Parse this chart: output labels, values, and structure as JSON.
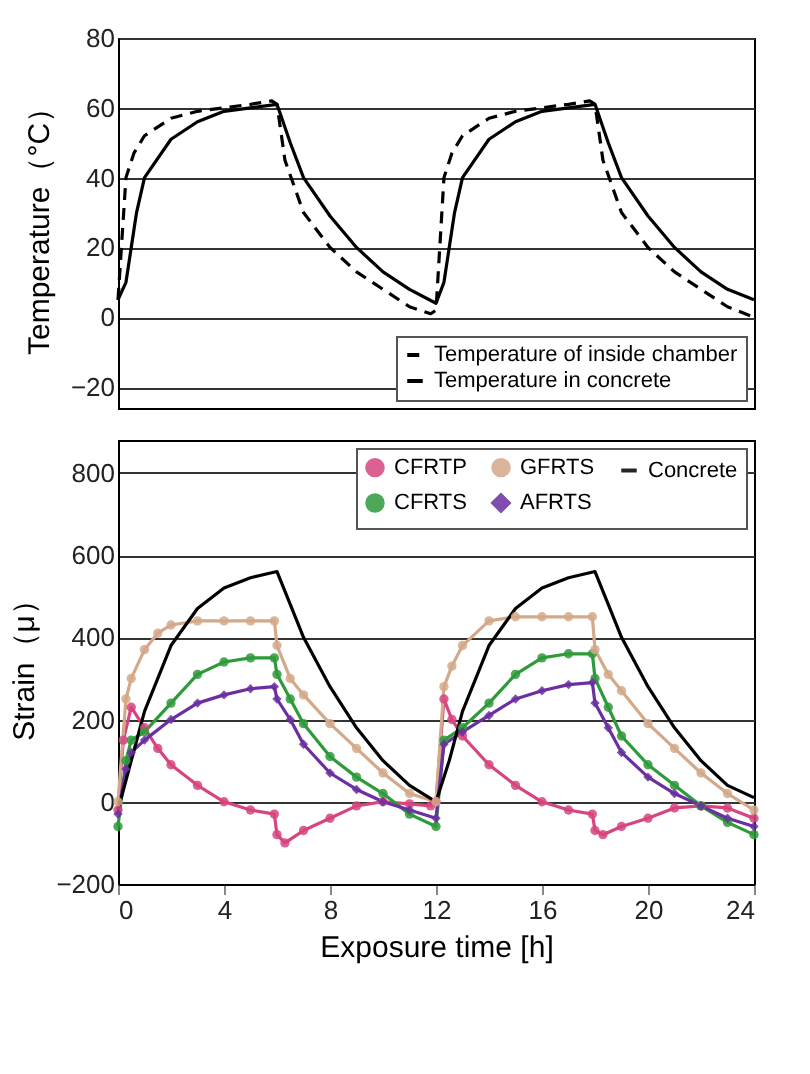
{
  "chart_data": [
    {
      "type": "line",
      "ylabel": "Temperature（°C）",
      "xlim": [
        0,
        24
      ],
      "xticks": [
        0,
        4,
        8,
        12,
        16,
        20,
        24
      ],
      "ylim": [
        -26,
        80
      ],
      "yticks": [
        -20,
        0,
        20,
        40,
        60,
        80
      ],
      "grid": "y",
      "legend": "bottom right",
      "tick_labels": "y",
      "marker": "none",
      "series": [
        {
          "name": "Temperature of inside chamber",
          "color": "#000000",
          "line_style": "dashed",
          "x": [
            0,
            0.3,
            0.6,
            1,
            2,
            3,
            4,
            5,
            5.8,
            6,
            6.3,
            7,
            8,
            9,
            10,
            11,
            11.8,
            12,
            12.3,
            12.6,
            13,
            14,
            15,
            16,
            17,
            17.8,
            18,
            18.3,
            19,
            20,
            21,
            22,
            23,
            24
          ],
          "values": [
            5,
            40,
            47,
            52,
            57,
            59,
            60,
            61,
            62,
            61,
            45,
            30,
            20,
            13,
            8,
            3,
            1,
            2,
            40,
            47,
            52,
            57,
            59,
            60,
            61,
            62,
            61,
            45,
            30,
            20,
            13,
            8,
            3,
            0
          ]
        },
        {
          "name": "Temperature in concrete",
          "color": "#000000",
          "line_style": "solid",
          "x": [
            0,
            0.3,
            0.7,
            1,
            2,
            3,
            4,
            5,
            6,
            6.5,
            7,
            8,
            9,
            10,
            11,
            12,
            12.3,
            12.7,
            13,
            14,
            15,
            16,
            17,
            18,
            18.5,
            19,
            20,
            21,
            22,
            23,
            24
          ],
          "values": [
            5,
            10,
            30,
            40,
            51,
            56,
            59,
            60,
            61,
            50,
            40,
            29,
            20,
            13,
            8,
            4,
            10,
            30,
            40,
            51,
            56,
            59,
            60,
            61,
            50,
            40,
            29,
            20,
            13,
            8,
            5
          ]
        }
      ]
    },
    {
      "type": "line",
      "xlabel": "Exposure time [h]",
      "ylabel": "Strain（μ）",
      "xlim": [
        0,
        24
      ],
      "xticks": [
        0,
        4,
        8,
        12,
        16,
        20,
        24
      ],
      "ylim": [
        -200,
        880
      ],
      "yticks": [
        -200,
        0,
        200,
        400,
        600,
        800
      ],
      "grid": "y",
      "legend": "top right",
      "marker": "circle",
      "series": [
        {
          "name": "CFRTP",
          "color": "#d6457f",
          "x": [
            0,
            0.2,
            0.5,
            1,
            1.5,
            2,
            3,
            4,
            5,
            5.9,
            6,
            6.3,
            7,
            8,
            9,
            10,
            11,
            11.8,
            12,
            12.3,
            12.6,
            13,
            14,
            15,
            16,
            17,
            17.9,
            18,
            18.3,
            19,
            20,
            21,
            22,
            23,
            24
          ],
          "values": [
            -20,
            150,
            230,
            180,
            130,
            90,
            40,
            0,
            -20,
            -30,
            -80,
            -100,
            -70,
            -40,
            -10,
            0,
            -5,
            -10,
            0,
            250,
            200,
            160,
            90,
            40,
            0,
            -20,
            -30,
            -70,
            -80,
            -60,
            -40,
            -15,
            -10,
            -15,
            -40
          ]
        },
        {
          "name": "CFRTS",
          "color": "#2e9a3a",
          "x": [
            0,
            0.3,
            0.5,
            1,
            2,
            3,
            4,
            5,
            5.9,
            6,
            6.5,
            7,
            8,
            9,
            10,
            11,
            12,
            12.3,
            13,
            14,
            15,
            16,
            17,
            17.9,
            18,
            18.5,
            19,
            20,
            21,
            22,
            23,
            24
          ],
          "values": [
            -60,
            100,
            150,
            170,
            240,
            310,
            340,
            350,
            350,
            310,
            250,
            190,
            110,
            60,
            20,
            -30,
            -60,
            150,
            180,
            240,
            310,
            350,
            360,
            360,
            300,
            230,
            160,
            90,
            40,
            -10,
            -50,
            -80
          ]
        },
        {
          "name": "GFRTS",
          "color": "#d4a98a",
          "x": [
            0,
            0.3,
            0.5,
            1,
            1.5,
            2,
            3,
            4,
            5,
            5.9,
            6,
            6.5,
            7,
            8,
            9,
            10,
            11,
            12,
            12.3,
            12.6,
            13,
            14,
            15,
            16,
            17,
            17.9,
            18,
            18.5,
            19,
            20,
            21,
            22,
            23,
            24
          ],
          "values": [
            0,
            250,
            300,
            370,
            410,
            430,
            440,
            440,
            440,
            440,
            380,
            300,
            260,
            190,
            130,
            70,
            20,
            0,
            280,
            330,
            380,
            440,
            450,
            450,
            450,
            450,
            370,
            310,
            270,
            190,
            130,
            70,
            20,
            -20
          ]
        },
        {
          "name": "AFRTS",
          "color": "#6a2fa0",
          "marker": "diamond",
          "x": [
            0,
            0.3,
            0.5,
            1,
            2,
            3,
            4,
            5,
            5.9,
            6,
            6.5,
            7,
            8,
            9,
            10,
            11,
            12,
            12.3,
            13,
            14,
            15,
            16,
            17,
            17.9,
            18,
            18.5,
            19,
            20,
            21,
            22,
            23,
            24
          ],
          "values": [
            -30,
            80,
            120,
            150,
            200,
            240,
            260,
            275,
            280,
            250,
            200,
            140,
            70,
            30,
            0,
            -20,
            -40,
            140,
            170,
            210,
            250,
            270,
            285,
            290,
            240,
            180,
            120,
            60,
            20,
            -10,
            -40,
            -60
          ]
        },
        {
          "name": "Concrete",
          "color": "#000000",
          "marker": "none",
          "x": [
            0,
            0.5,
            1,
            2,
            3,
            4,
            5,
            6,
            6.5,
            7,
            8,
            9,
            10,
            11,
            12,
            12.5,
            13,
            14,
            15,
            16,
            17,
            18,
            18.5,
            19,
            20,
            21,
            22,
            23,
            24
          ],
          "values": [
            -20,
            100,
            220,
            380,
            470,
            520,
            545,
            560,
            480,
            400,
            280,
            180,
            100,
            40,
            0,
            100,
            220,
            380,
            470,
            520,
            545,
            560,
            480,
            400,
            280,
            180,
            100,
            40,
            10
          ]
        }
      ]
    }
  ]
}
